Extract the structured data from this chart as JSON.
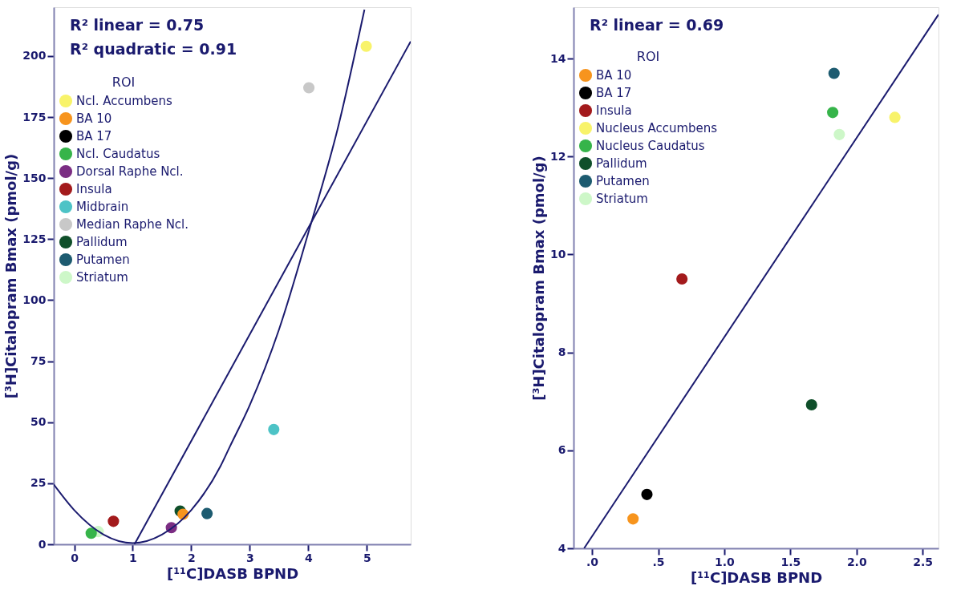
{
  "chart_data": [
    {
      "type": "scatter",
      "xlabel": "[¹¹C]DASB BPND",
      "ylabel": "[³H]Citalopram  Bmax (pmol/g)",
      "legend_title": "ROI",
      "legend": "top left",
      "grid": false,
      "marker": "circle",
      "xlim": [
        -0.35,
        5.75
      ],
      "ylim": [
        0,
        220
      ],
      "xticks": [
        0,
        1,
        2,
        3,
        4,
        5
      ],
      "yticks": [
        0,
        25,
        50,
        75,
        100,
        125,
        150,
        175,
        200
      ],
      "annotations": [
        "R² linear        = 0.75",
        "R² quadratic = 0.91"
      ],
      "series": [
        {
          "name": "Ncl. Accumbens",
          "color": "#f8f36a",
          "x": [
            4.99
          ],
          "values": [
            204
          ]
        },
        {
          "name": "BA 10",
          "color": "#f7941d",
          "x": [
            1.86
          ],
          "values": [
            12.3
          ]
        },
        {
          "name": "BA 17",
          "color": "#000000"
        },
        {
          "name": "Ncl. Caudatus",
          "color": "#36b44a",
          "x": [
            0.29
          ],
          "values": [
            4.5
          ]
        },
        {
          "name": "Dorsal Raphe Ncl.",
          "color": "#7b2d83",
          "x": [
            1.66
          ],
          "values": [
            6.8
          ]
        },
        {
          "name": "Insula",
          "color": "#a31a1c",
          "x": [
            0.67
          ],
          "values": [
            9.4
          ]
        },
        {
          "name": "Midbrain",
          "color": "#4dc3c6",
          "x": [
            3.41
          ],
          "values": [
            47
          ]
        },
        {
          "name": "Median Raphe Ncl.",
          "color": "#c8c8c8",
          "x": [
            4.01
          ],
          "values": [
            187
          ]
        },
        {
          "name": "Pallidum",
          "color": "#0f4f2a",
          "x": [
            1.81
          ],
          "values": [
            13.6
          ]
        },
        {
          "name": "Putamen",
          "color": "#1d5b70",
          "x": [
            2.27
          ],
          "values": [
            12.6
          ]
        },
        {
          "name": "Striatum",
          "color": "#cdf7c8",
          "x": [
            0.41
          ],
          "values": [
            5.2
          ]
        },
        {
          "type": "line",
          "marker": "none",
          "color": "#1a1a6e",
          "x": [
            1.03,
            5.75
          ],
          "values": [
            0,
            206
          ]
        },
        {
          "type": "line",
          "marker": "none",
          "color": "#1a1a6e",
          "x": [
            -0.35,
            0,
            0.5,
            1,
            1.5,
            2,
            2.5,
            2.66,
            3,
            3.5,
            4.03,
            4.5,
            4.96
          ],
          "values": [
            24.5,
            14,
            4,
            0.5,
            4,
            14,
            32,
            40,
            57,
            88,
            130,
            170,
            219
          ]
        }
      ]
    },
    {
      "type": "scatter",
      "xlabel": "[¹¹C]DASB BPND",
      "ylabel": "[³H]Citalopram  Bmax (pmol/g)",
      "legend_title": "ROI",
      "legend": "top left",
      "grid": false,
      "marker": "circle",
      "xlim": [
        -0.14,
        2.62
      ],
      "ylim": [
        4,
        15.05
      ],
      "xticks": [
        {
          "value": 0,
          "label": ".0"
        },
        {
          "value": 0.5,
          "label": ".5"
        },
        {
          "value": 1,
          "label": "1.0"
        },
        {
          "value": 1.5,
          "label": "1.5"
        },
        {
          "value": 2,
          "label": "2.0"
        },
        {
          "value": 2.5,
          "label": "2.5"
        }
      ],
      "yticks": [
        4,
        6,
        8,
        10,
        12,
        14
      ],
      "annotations": [
        "R² linear = 0.69"
      ],
      "series": [
        {
          "name": "BA 10",
          "color": "#f7941d",
          "x": [
            0.31
          ],
          "values": [
            4.6
          ]
        },
        {
          "name": "BA 17",
          "color": "#000000",
          "x": [
            0.415
          ],
          "values": [
            5.1
          ]
        },
        {
          "name": "Insula",
          "color": "#a31a1c",
          "x": [
            0.68
          ],
          "values": [
            9.5
          ]
        },
        {
          "name": "Nucleus Accumbens",
          "color": "#f8f36a",
          "x": [
            2.29
          ],
          "values": [
            12.8
          ]
        },
        {
          "name": "Nucleus Caudatus",
          "color": "#36b44a",
          "x": [
            1.82
          ],
          "values": [
            12.9
          ]
        },
        {
          "name": "Pallidum",
          "color": "#0f4f2a",
          "x": [
            1.66
          ],
          "values": [
            6.93
          ]
        },
        {
          "name": "Putamen",
          "color": "#1d5b70",
          "x": [
            1.83
          ],
          "values": [
            13.7
          ]
        },
        {
          "name": "Striatum",
          "color": "#cdf7c8",
          "x": [
            1.87
          ],
          "values": [
            12.45
          ]
        },
        {
          "type": "line",
          "marker": "none",
          "color": "#1a1a6e",
          "x": [
            -0.06,
            2.62
          ],
          "values": [
            4,
            14.9
          ]
        }
      ]
    }
  ]
}
